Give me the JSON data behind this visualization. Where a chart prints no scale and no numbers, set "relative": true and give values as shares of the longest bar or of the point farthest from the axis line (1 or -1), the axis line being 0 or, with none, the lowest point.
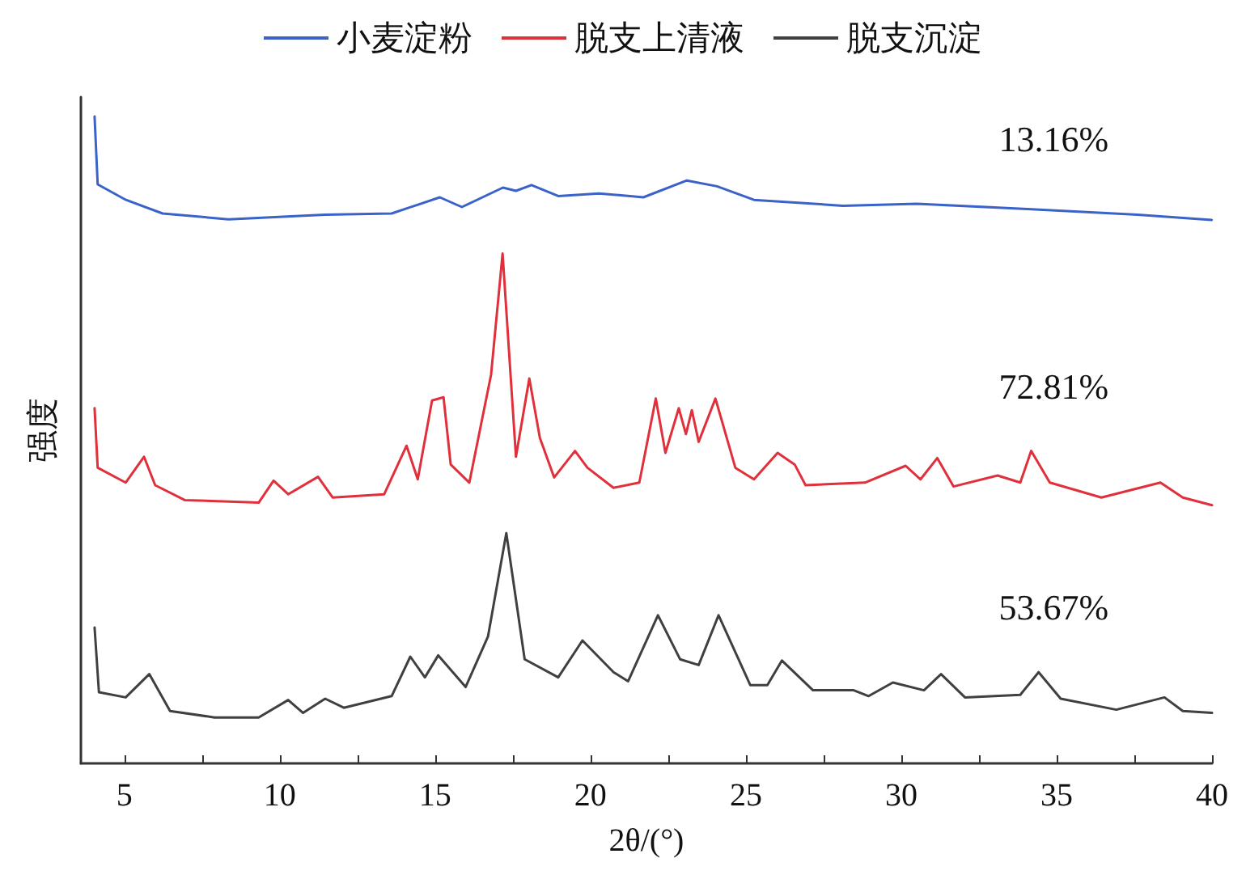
{
  "chart_data": {
    "type": "line",
    "relative": true,
    "xlabel": "2θ/(°)",
    "ylabel": "强度",
    "xlim": [
      3.6,
      40
    ],
    "xticks": [
      5,
      {
        "value": 7.5,
        "label": null
      },
      10,
      {
        "value": 12.5,
        "label": null
      },
      15,
      {
        "value": 17.5,
        "label": null
      },
      20,
      {
        "value": 22.5,
        "label": null
      },
      25,
      {
        "value": 27.5,
        "label": null
      },
      30,
      {
        "value": 32.5,
        "label": null
      },
      35,
      {
        "value": 37.5,
        "label": null
      },
      40
    ],
    "legend": "top",
    "grid": false,
    "marker": "none",
    "line_style": "solid",
    "annotations": [
      "13.16%",
      "72.81%",
      "53.67%"
    ],
    "series": [
      {
        "name": "小麦淀粉",
        "color": "#3a62c8",
        "x": [
          4.04,
          4.14,
          5.05,
          6.23,
          8.35,
          11.45,
          13.6,
          15.15,
          15.86,
          17.18,
          17.6,
          18.1,
          18.96,
          20.27,
          21.7,
          23.1,
          24.07,
          25.26,
          28.12,
          30.5,
          34.06,
          37.6,
          39.99
        ],
        "values": [
          1.0,
          0.895,
          0.871,
          0.85,
          0.841,
          0.848,
          0.85,
          0.875,
          0.86,
          0.89,
          0.885,
          0.894,
          0.877,
          0.881,
          0.875,
          0.901,
          0.892,
          0.871,
          0.862,
          0.865,
          0.857,
          0.848,
          0.84
        ]
      },
      {
        "name": "脱支上清液",
        "color": "#e0303c",
        "x": [
          4.04,
          4.14,
          5.04,
          5.63,
          5.99,
          6.94,
          9.32,
          9.8,
          10.27,
          11.23,
          11.7,
          13.36,
          14.08,
          14.44,
          14.9,
          15.27,
          15.5,
          16.1,
          16.8,
          17.17,
          17.6,
          18.03,
          18.37,
          18.83,
          19.5,
          19.9,
          20.74,
          21.57,
          22.1,
          22.41,
          22.84,
          23.07,
          23.26,
          23.48,
          24.02,
          24.66,
          25.26,
          26.02,
          26.57,
          26.92,
          28.83,
          30.14,
          30.62,
          31.16,
          31.68,
          33.1,
          33.83,
          34.18,
          34.78,
          36.44,
          38.34,
          39.06,
          40.0
        ],
        "values": [
          0.549,
          0.457,
          0.434,
          0.474,
          0.43,
          0.407,
          0.403,
          0.437,
          0.416,
          0.443,
          0.411,
          0.416,
          0.491,
          0.439,
          0.561,
          0.566,
          0.462,
          0.434,
          0.601,
          0.788,
          0.474,
          0.595,
          0.503,
          0.442,
          0.483,
          0.457,
          0.426,
          0.434,
          0.564,
          0.48,
          0.549,
          0.509,
          0.546,
          0.497,
          0.564,
          0.457,
          0.439,
          0.48,
          0.462,
          0.43,
          0.434,
          0.46,
          0.439,
          0.472,
          0.428,
          0.445,
          0.434,
          0.483,
          0.434,
          0.411,
          0.434,
          0.411,
          0.399
        ]
      },
      {
        "name": "脱支沉淀",
        "color": "#404040",
        "x": [
          4.04,
          4.18,
          5.04,
          5.8,
          6.47,
          7.9,
          9.32,
          10.27,
          10.75,
          11.46,
          12.06,
          13.6,
          14.2,
          14.67,
          15.1,
          15.98,
          16.7,
          17.29,
          17.88,
          18.96,
          19.74,
          20.74,
          21.21,
          22.17,
          22.88,
          23.48,
          24.12,
          25.14,
          25.69,
          26.16,
          27.16,
          28.47,
          28.95,
          29.73,
          30.73,
          31.28,
          32.05,
          33.83,
          34.42,
          35.13,
          36.92,
          38.47,
          39.06,
          40.0
        ],
        "values": [
          0.21,
          0.11,
          0.102,
          0.138,
          0.081,
          0.071,
          0.071,
          0.098,
          0.078,
          0.1,
          0.086,
          0.104,
          0.165,
          0.133,
          0.167,
          0.118,
          0.196,
          0.356,
          0.161,
          0.133,
          0.19,
          0.141,
          0.127,
          0.229,
          0.161,
          0.152,
          0.229,
          0.121,
          0.121,
          0.159,
          0.113,
          0.113,
          0.104,
          0.125,
          0.113,
          0.138,
          0.102,
          0.106,
          0.141,
          0.1,
          0.083,
          0.102,
          0.081,
          0.078
        ]
      }
    ]
  }
}
